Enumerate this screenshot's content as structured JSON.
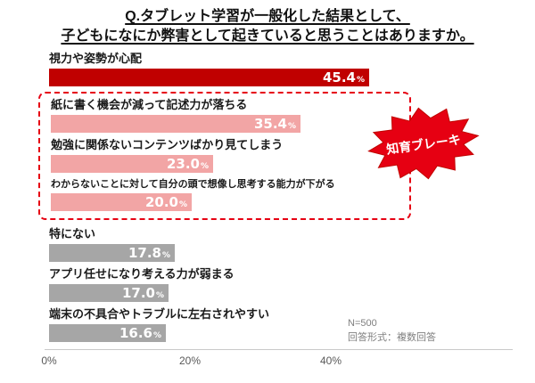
{
  "title": {
    "line1": "Q.タブレット学習が一般化した結果として、",
    "line2": "子どもになにか弊害として起きていると思うことはありますか。"
  },
  "chart_data": {
    "type": "bar",
    "orientation": "horizontal",
    "categories": [
      "視力や姿勢が心配",
      "紙に書く機会が減って記述力が落ちる",
      "勉強に関係ないコンテンツばかり見てしまう",
      "わからないことに対して自分の頭で想像し思考する能力が下がる",
      "特にない",
      "アプリ任せになり考える力が弱まる",
      "端末の不具合やトラブルに左右されやすい"
    ],
    "values": [
      45.4,
      35.4,
      23.0,
      20.0,
      17.8,
      17.0,
      16.6
    ],
    "display": [
      "45.4",
      "35.4",
      "23.0",
      "20.0",
      "17.8",
      "17.0",
      "16.6"
    ],
    "percent_sign": "%",
    "x_ticks": [
      "0%",
      "20%",
      "40%"
    ],
    "xlim": [
      0,
      40
    ],
    "legend": "none",
    "grid": "off",
    "colors": {
      "dark": "#c00000",
      "pink": "#f2a5a5",
      "gray": "#a6a6a6",
      "highlight_border": "#e60012",
      "badge_fill": "#e60012"
    },
    "item_colors": [
      "dark",
      "pink",
      "pink",
      "pink",
      "gray",
      "gray",
      "gray"
    ],
    "annotation": {
      "badge": "知育ブレーキ"
    },
    "note_line1": "N=500",
    "note_line2": "回答形式：複数回答"
  }
}
